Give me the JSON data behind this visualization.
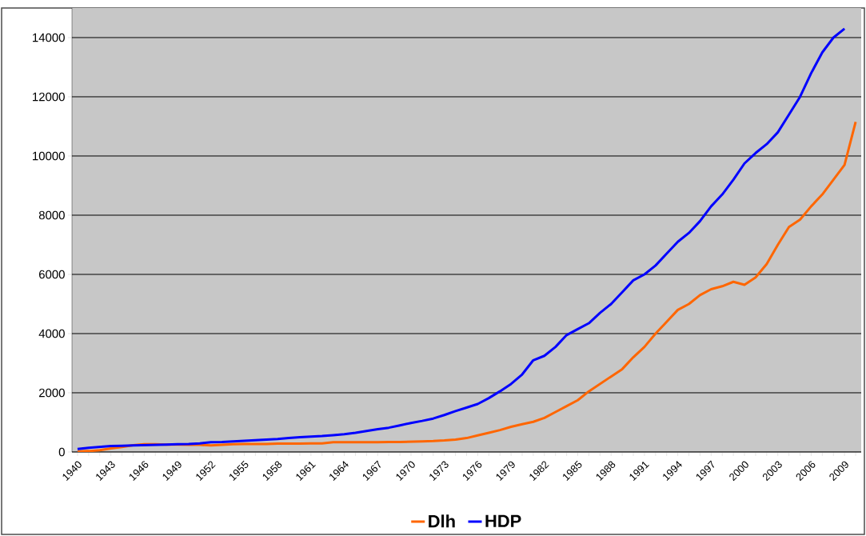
{
  "chart_data": {
    "type": "line",
    "categories": [
      "1940",
      null,
      null,
      "1943",
      null,
      null,
      "1946",
      null,
      null,
      "1949",
      null,
      null,
      "1952",
      null,
      null,
      "1955",
      null,
      null,
      "1958",
      null,
      null,
      "1961",
      null,
      null,
      "1964",
      null,
      null,
      "1967",
      null,
      null,
      "1970",
      null,
      null,
      "1973",
      null,
      null,
      "1976",
      null,
      null,
      "1979",
      null,
      null,
      "1982",
      null,
      null,
      "1985",
      null,
      null,
      "1988",
      null,
      null,
      "1991",
      null,
      null,
      "1994",
      null,
      null,
      "1997",
      null,
      null,
      "2000",
      null,
      null,
      "2003",
      null,
      null,
      "2006",
      null,
      null,
      "2009",
      null
    ],
    "series": [
      {
        "name": "Dlh",
        "color": "#ff6600",
        "values": [
          20,
          30,
          60,
          120,
          170,
          230,
          260,
          260,
          250,
          250,
          240,
          240,
          220,
          240,
          260,
          270,
          270,
          270,
          280,
          280,
          280,
          290,
          290,
          330,
          330,
          330,
          330,
          330,
          340,
          340,
          350,
          360,
          370,
          390,
          420,
          470,
          560,
          650,
          740,
          850,
          940,
          1020,
          1150,
          1350,
          1550,
          1750,
          2050,
          2300,
          2550,
          2800,
          3200,
          3550,
          4000,
          4400,
          4800,
          5000,
          5300,
          5500,
          5600,
          5750,
          5650,
          5900,
          6350,
          7000,
          7600,
          7850,
          8300,
          8700,
          9200,
          9700,
          11150
        ]
      },
      {
        "name": "HDP",
        "color": "#0000ff",
        "values": [
          100,
          140,
          170,
          200,
          210,
          220,
          230,
          240,
          250,
          260,
          270,
          290,
          330,
          340,
          360,
          380,
          400,
          420,
          440,
          470,
          500,
          520,
          540,
          570,
          600,
          650,
          710,
          770,
          820,
          900,
          980,
          1050,
          1130,
          1250,
          1380,
          1500,
          1620,
          1820,
          2050,
          2300,
          2620,
          3100,
          3250,
          3550,
          3950,
          4150,
          4350,
          4700,
          5000,
          5400,
          5800,
          6000,
          6300,
          6700,
          7100,
          7400,
          7800,
          8300,
          8700,
          9200,
          9750,
          10100,
          10400,
          10800,
          11400,
          12000,
          12800,
          13500,
          14000,
          14300,
          null
        ]
      }
    ],
    "ylim": [
      0,
      15000
    ],
    "yticks": [
      0,
      2000,
      4000,
      6000,
      8000,
      10000,
      12000,
      14000
    ],
    "grid": "y",
    "legend": "bottom"
  }
}
